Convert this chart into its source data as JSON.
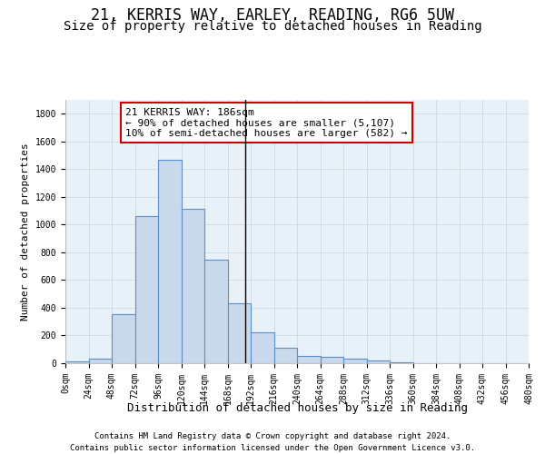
{
  "title1": "21, KERRIS WAY, EARLEY, READING, RG6 5UW",
  "title2": "Size of property relative to detached houses in Reading",
  "xlabel": "Distribution of detached houses by size in Reading",
  "ylabel": "Number of detached properties",
  "bin_edges": [
    0,
    24,
    48,
    72,
    96,
    120,
    144,
    168,
    192,
    216,
    240,
    264,
    288,
    312,
    336,
    360,
    384,
    408,
    432,
    456,
    480
  ],
  "bar_heights": [
    10,
    35,
    355,
    1060,
    1465,
    1115,
    750,
    435,
    220,
    110,
    53,
    45,
    30,
    18,
    5,
    3,
    0,
    0,
    0,
    0
  ],
  "bar_color": "#c9d9ec",
  "bar_edge_color": "#5b8fc9",
  "vline_x": 186,
  "vline_color": "#000000",
  "annotation_box_text": "21 KERRIS WAY: 186sqm\n← 90% of detached houses are smaller (5,107)\n10% of semi-detached houses are larger (582) →",
  "annotation_box_edge_color": "#cc0000",
  "annotation_box_face_color": "#ffffff",
  "footnote1": "Contains HM Land Registry data © Crown copyright and database right 2024.",
  "footnote2": "Contains public sector information licensed under the Open Government Licence v3.0.",
  "grid_color": "#d0d8e8",
  "background_color": "#e8f0f8",
  "ylim": [
    0,
    1900
  ],
  "xlim": [
    0,
    480
  ],
  "title1_fontsize": 12,
  "title2_fontsize": 10,
  "xlabel_fontsize": 9,
  "ylabel_fontsize": 8,
  "tick_fontsize": 7,
  "footnote_fontsize": 6.5,
  "annotation_fontsize": 8
}
